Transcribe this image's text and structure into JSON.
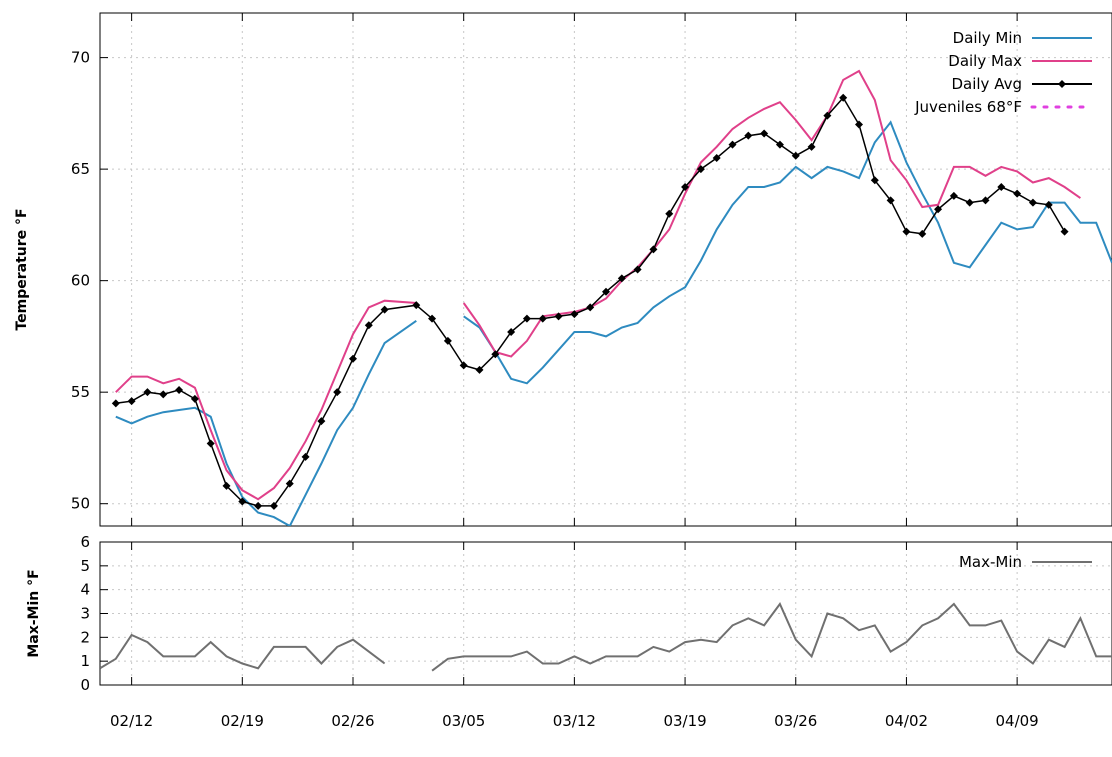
{
  "chart_data": [
    {
      "type": "line",
      "ylabel": "Temperature °F",
      "ylim": [
        49,
        72
      ],
      "yticks": [
        50,
        55,
        60,
        65,
        70
      ],
      "xticks": [
        "02/12",
        "02/19",
        "02/26",
        "03/05",
        "03/12",
        "03/19",
        "03/26",
        "04/02",
        "04/09"
      ],
      "xtick_day_offsets": [
        2,
        9,
        16,
        23,
        30,
        37,
        44,
        51,
        58
      ],
      "xlim_days": [
        0,
        64
      ],
      "grid": true,
      "legend_position": "top-right",
      "x_days": [
        1,
        2,
        3,
        4,
        5,
        6,
        7,
        8,
        9,
        10,
        11,
        12,
        13,
        14,
        15,
        16,
        17,
        18,
        20,
        21,
        22,
        23,
        24,
        25,
        26,
        27,
        28,
        29,
        30,
        31,
        32,
        33,
        34,
        35,
        36,
        37,
        38,
        39,
        40,
        41,
        42,
        43,
        44,
        45,
        46,
        47,
        48,
        49,
        50,
        51,
        52,
        53,
        54,
        55,
        56,
        57,
        58,
        59,
        60,
        61,
        62,
        63,
        64
      ],
      "series": [
        {
          "name": "Daily Min",
          "color": "#2e8bc0",
          "values": [
            53.9,
            53.6,
            53.9,
            54.1,
            54.2,
            54.3,
            53.9,
            51.8,
            50.3,
            49.6,
            49.4,
            49.0,
            50.4,
            51.8,
            53.3,
            54.3,
            55.8,
            57.2,
            58.2,
            null,
            null,
            58.4,
            57.9,
            56.8,
            55.6,
            55.4,
            56.1,
            56.9,
            57.7,
            57.7,
            57.5,
            57.9,
            58.1,
            58.8,
            59.3,
            59.7,
            60.9,
            62.3,
            63.4,
            64.2,
            64.2,
            64.4,
            65.1,
            64.6,
            65.1,
            64.9,
            64.6,
            66.2,
            67.1,
            65.3,
            63.9,
            62.6,
            60.8,
            60.6,
            61.6,
            62.6,
            62.3,
            62.4,
            63.5,
            63.5,
            62.6,
            62.6,
            60.8
          ]
        },
        {
          "name": "Daily Max",
          "color": "#e0408a",
          "values": [
            55.0,
            55.7,
            55.7,
            55.4,
            55.6,
            55.2,
            53.3,
            51.5,
            50.6,
            50.2,
            50.7,
            51.6,
            52.8,
            54.2,
            55.9,
            57.6,
            58.8,
            59.1,
            59.0,
            null,
            null,
            59.0,
            58.0,
            56.8,
            56.6,
            57.3,
            58.4,
            58.5,
            58.6,
            58.8,
            59.2,
            60.0,
            60.6,
            61.4,
            62.3,
            63.9,
            65.3,
            66.0,
            66.8,
            67.3,
            67.7,
            68.0,
            67.2,
            66.3,
            67.4,
            69.0,
            69.4,
            68.1,
            65.4,
            64.5,
            63.3,
            63.4,
            65.1,
            65.1,
            64.7,
            65.1,
            64.9,
            64.4,
            64.6,
            64.2,
            63.7,
            null,
            null
          ]
        },
        {
          "name": "Daily Avg",
          "color": "#000000",
          "marker": "diamond",
          "values": [
            54.5,
            54.6,
            55.0,
            54.9,
            55.1,
            54.7,
            52.7,
            50.8,
            50.1,
            49.9,
            49.9,
            50.9,
            52.1,
            53.7,
            55.0,
            56.5,
            58.0,
            58.7,
            58.9,
            58.3,
            57.3,
            56.2,
            56.0,
            56.7,
            57.7,
            58.3,
            58.3,
            58.4,
            58.5,
            58.8,
            59.5,
            60.1,
            60.5,
            61.4,
            63.0,
            64.2,
            65.0,
            65.5,
            66.1,
            66.5,
            66.6,
            66.1,
            65.6,
            66.0,
            67.4,
            68.2,
            67.0,
            64.5,
            63.6,
            62.2,
            62.1,
            63.2,
            63.8,
            63.5,
            63.6,
            64.2,
            63.9,
            63.5,
            63.4,
            62.2,
            null,
            null,
            null
          ]
        },
        {
          "name": "Juveniles 68°F",
          "color": "#e040e0",
          "style": "dotted",
          "values": []
        }
      ]
    },
    {
      "type": "line",
      "ylabel": "Max-Min °F",
      "ylim": [
        0,
        6
      ],
      "yticks": [
        0,
        1,
        2,
        3,
        4,
        5,
        6
      ],
      "grid": true,
      "legend_position": "top-right",
      "series": [
        {
          "name": "Max-Min",
          "color": "#707070",
          "x_days": [
            0,
            1,
            2,
            3,
            4,
            5,
            6,
            7,
            8,
            9,
            10,
            11,
            12,
            13,
            14,
            15,
            16,
            17,
            18,
            21,
            22,
            23,
            24,
            25,
            26,
            27,
            28,
            29,
            30,
            31,
            32,
            33,
            34,
            35,
            36,
            37,
            38,
            39,
            40,
            41,
            42,
            43,
            44,
            45,
            46,
            47,
            48,
            49,
            50,
            51,
            52,
            53,
            54,
            55,
            56,
            57,
            58,
            59,
            60,
            61,
            62,
            63,
            64
          ],
          "values": [
            0.7,
            1.1,
            2.1,
            1.8,
            1.2,
            1.2,
            1.2,
            1.8,
            1.2,
            0.9,
            0.7,
            1.6,
            1.6,
            1.6,
            0.9,
            1.6,
            1.9,
            1.4,
            0.9,
            0.6,
            1.1,
            1.2,
            1.2,
            1.2,
            1.2,
            1.4,
            0.9,
            0.9,
            1.2,
            0.9,
            1.2,
            1.2,
            1.2,
            1.6,
            1.4,
            1.8,
            1.9,
            1.8,
            2.5,
            2.8,
            2.5,
            3.4,
            1.9,
            1.2,
            3.0,
            2.8,
            2.3,
            2.5,
            1.4,
            1.8,
            2.5,
            2.8,
            3.4,
            2.5,
            2.5,
            2.7,
            1.4,
            0.9,
            1.9,
            1.6,
            2.8,
            1.2,
            1.2
          ]
        }
      ]
    }
  ]
}
